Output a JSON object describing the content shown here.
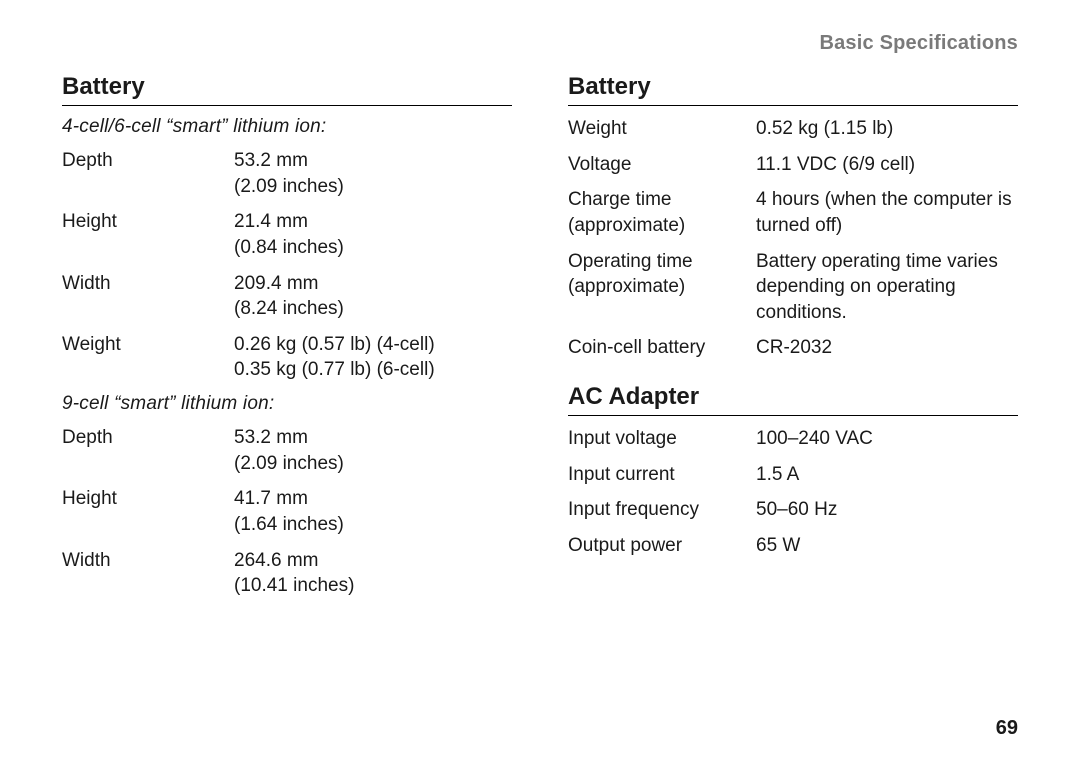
{
  "header": "Basic Specifications",
  "page_number": "69",
  "left": {
    "title": "Battery",
    "group1": {
      "subhead": "4-cell/6-cell “smart” lithium ion:",
      "rows": [
        {
          "label": "Depth",
          "value": "53.2 mm\n(2.09 inches)"
        },
        {
          "label": "Height",
          "value": "21.4 mm\n(0.84 inches)"
        },
        {
          "label": "Width",
          "value": "209.4 mm\n(8.24 inches)"
        },
        {
          "label": "Weight",
          "value": "0.26 kg (0.57 lb) (4-cell)\n0.35 kg (0.77 lb) (6-cell)"
        }
      ]
    },
    "group2": {
      "subhead": "9-cell “smart” lithium ion:",
      "rows": [
        {
          "label": "Depth",
          "value": "53.2 mm\n(2.09 inches)"
        },
        {
          "label": "Height",
          "value": "41.7 mm\n(1.64 inches)"
        },
        {
          "label": "Width",
          "value": "264.6 mm\n(10.41 inches)"
        }
      ]
    }
  },
  "right": {
    "sec1": {
      "title": "Battery",
      "rows": [
        {
          "label": "Weight",
          "value": "0.52 kg (1.15 lb)"
        },
        {
          "label": "Voltage",
          "value": "11.1 VDC (6/9 cell)"
        },
        {
          "label": "Charge time\n(approximate)",
          "value": "4 hours (when the computer is turned off)"
        },
        {
          "label": "Operating time\n(approximate)",
          "value": "Battery operating time varies depending on operating conditions."
        },
        {
          "label": "Coin-cell battery",
          "value": "CR-2032"
        }
      ]
    },
    "sec2": {
      "title": "AC Adapter",
      "rows": [
        {
          "label": "Input voltage",
          "value": "100–240 VAC"
        },
        {
          "label": "Input current",
          "value": "1.5 A"
        },
        {
          "label": "Input frequency",
          "value": "50–60 Hz"
        },
        {
          "label": "Output power",
          "value": "65 W"
        }
      ]
    }
  }
}
